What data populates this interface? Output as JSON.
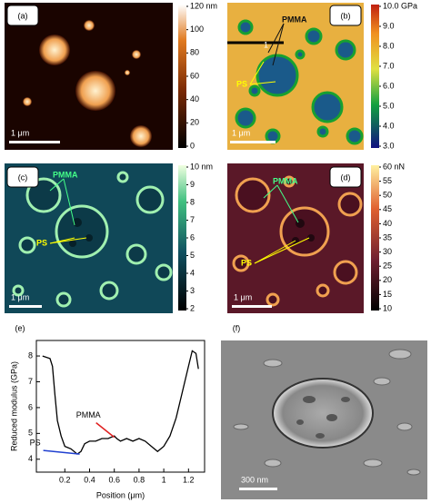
{
  "panels": {
    "a": {
      "label": "(a)",
      "scale_bar": "1 μm",
      "colorbar": [
        "120 nm",
        "100",
        "80",
        "60",
        "40",
        "20",
        "0"
      ]
    },
    "b": {
      "label": "(b)",
      "scale_bar": "1 μm",
      "colorbar": [
        "10.0 GPa",
        "9.0",
        "8.0",
        "7.0",
        "6.0",
        "5.0",
        "4.0",
        "3.0"
      ],
      "annotations": [
        "PMMA",
        "PS",
        "1"
      ]
    },
    "c": {
      "label": "(c)",
      "scale_bar": "1 μm",
      "colorbar": [
        "10 nm",
        "9",
        "8",
        "7",
        "6",
        "5",
        "4",
        "3",
        "2"
      ],
      "annotations": [
        "PMMA",
        "PS"
      ]
    },
    "d": {
      "label": "(d)",
      "scale_bar": "1 μm",
      "colorbar": [
        "60 nN",
        "55",
        "50",
        "45",
        "40",
        "35",
        "30",
        "25",
        "20",
        "15",
        "10"
      ],
      "annotations": [
        "PMMA",
        "PS"
      ]
    },
    "e": {
      "label": "(e)"
    },
    "f": {
      "label": "(f)",
      "scale_bar": "300 nm"
    }
  },
  "chart_data": {
    "type": "line",
    "xlabel": "Position (μm)",
    "ylabel": "Reduced modulus (GPa)",
    "x": [
      0.02,
      0.08,
      0.1,
      0.12,
      0.14,
      0.17,
      0.2,
      0.25,
      0.3,
      0.33,
      0.36,
      0.4,
      0.45,
      0.5,
      0.55,
      0.6,
      0.62,
      0.65,
      0.7,
      0.75,
      0.8,
      0.85,
      0.9,
      0.95,
      1.0,
      1.05,
      1.1,
      1.15,
      1.2,
      1.23,
      1.26,
      1.28
    ],
    "values": [
      8.0,
      7.9,
      7.6,
      6.5,
      5.5,
      4.9,
      4.5,
      4.4,
      4.2,
      4.3,
      4.6,
      4.7,
      4.7,
      4.8,
      4.8,
      4.9,
      4.8,
      4.7,
      4.8,
      4.7,
      4.8,
      4.7,
      4.5,
      4.3,
      4.5,
      4.9,
      5.6,
      6.6,
      7.6,
      8.2,
      8.1,
      7.5
    ],
    "color": "#000000",
    "xlim": [
      -0.03,
      1.33
    ],
    "ylim": [
      3.5,
      8.6
    ],
    "xticks": [
      0.2,
      0.4,
      0.6,
      0.8,
      1.0,
      1.2
    ],
    "yticks": [
      4,
      5,
      6,
      7,
      8
    ],
    "annotations": [
      {
        "text": "PMMA",
        "x": 0.6,
        "y": 4.85,
        "color": "#e02020"
      },
      {
        "text": "PS",
        "x": 0.32,
        "y": 4.2,
        "color": "#2040d0"
      }
    ]
  }
}
